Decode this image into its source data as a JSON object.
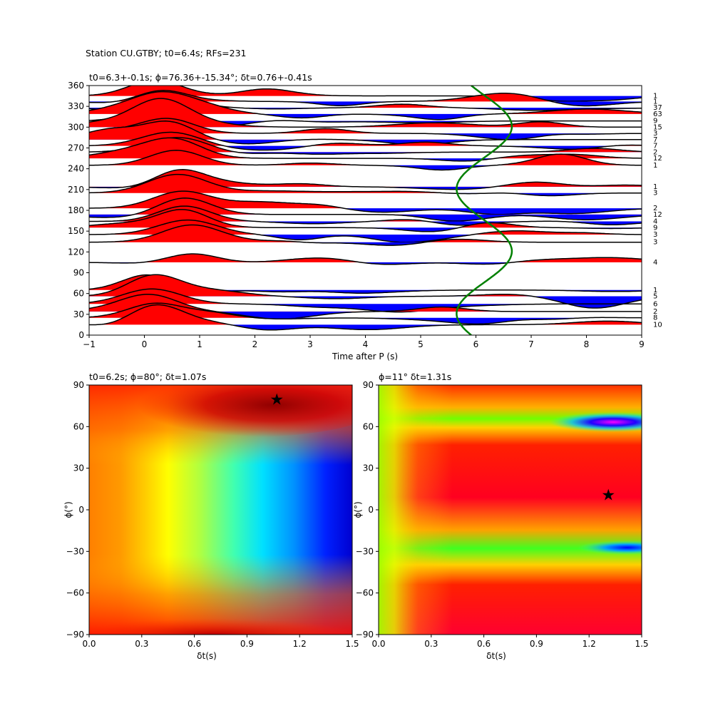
{
  "suptitle": "Station CU.GTBY; t0=6.4s; RFs=231",
  "chart_data": [
    {
      "type": "line",
      "title": "t0=6.3+-0.1s; ϕ=76.36+-15.34°; δt=0.76+-0.41s",
      "xlabel": "Time after P (s)",
      "ylabel": "",
      "xlim": [
        -1,
        9
      ],
      "ylim": [
        0,
        360
      ],
      "xticks": [
        "−1",
        "0",
        "1",
        "2",
        "3",
        "4",
        "5",
        "6",
        "7",
        "8",
        "9"
      ],
      "yticks": [
        "0",
        "30",
        "60",
        "90",
        "120",
        "150",
        "180",
        "210",
        "240",
        "270",
        "300",
        "330",
        "360"
      ],
      "colors": {
        "positive": "#ff0000",
        "negative": "#0000ff",
        "trace": "#000000",
        "curve": "#008000"
      },
      "traces": [
        {
          "baz": 345,
          "count": "1"
        },
        {
          "baz": 337,
          "count": "1"
        },
        {
          "baz": 328,
          "count": "37"
        },
        {
          "baz": 319,
          "count": "63"
        },
        {
          "baz": 309,
          "count": "9"
        },
        {
          "baz": 300,
          "count": "15"
        },
        {
          "baz": 291,
          "count": "3"
        },
        {
          "baz": 282,
          "count": "7"
        },
        {
          "baz": 273,
          "count": "7"
        },
        {
          "baz": 264,
          "count": "2"
        },
        {
          "baz": 255,
          "count": "12"
        },
        {
          "baz": 245,
          "count": "1"
        },
        {
          "baz": 214,
          "count": "1"
        },
        {
          "baz": 205,
          "count": "3"
        },
        {
          "baz": 183,
          "count": "2"
        },
        {
          "baz": 174,
          "count": "12"
        },
        {
          "baz": 164,
          "count": "4"
        },
        {
          "baz": 155,
          "count": "9"
        },
        {
          "baz": 145,
          "count": "3"
        },
        {
          "baz": 134,
          "count": "3"
        },
        {
          "baz": 105,
          "count": "4"
        },
        {
          "baz": 65,
          "count": "1"
        },
        {
          "baz": 56,
          "count": "5"
        },
        {
          "baz": 45,
          "count": "6"
        },
        {
          "baz": 34,
          "count": "2"
        },
        {
          "baz": 25,
          "count": "8"
        },
        {
          "baz": 15,
          "count": "10"
        }
      ],
      "green_curve": {
        "center": 6.15,
        "amplitude": 0.5,
        "period_deg": 180,
        "phase_deg": 76
      }
    },
    {
      "type": "heatmap",
      "title": "t0=6.2s; ϕ=80°; δt=1.07s",
      "xlabel": "δt(s)",
      "ylabel": "ϕ(°)",
      "xlim": [
        0.0,
        1.5
      ],
      "ylim": [
        -90,
        90
      ],
      "xticks": [
        "0.0",
        "0.3",
        "0.6",
        "0.9",
        "1.2",
        "1.5"
      ],
      "yticks": [
        "−90",
        "−60",
        "−30",
        "0",
        "30",
        "60",
        "90"
      ],
      "colormap": "jet",
      "best": {
        "dt": 1.07,
        "phi": 80
      }
    },
    {
      "type": "heatmap",
      "title": "ϕ=11° δt=1.31s",
      "xlabel": "δt(s)",
      "ylabel": "ϕ(°)",
      "xlim": [
        0.0,
        1.5
      ],
      "ylim": [
        -90,
        90
      ],
      "xticks": [
        "0.0",
        "0.3",
        "0.6",
        "0.9",
        "1.2",
        "1.5"
      ],
      "yticks": [
        "−90",
        "−60",
        "−30",
        "0",
        "30",
        "60",
        "90"
      ],
      "colormap": "hsv",
      "best": {
        "dt": 1.31,
        "phi": 11
      }
    }
  ]
}
